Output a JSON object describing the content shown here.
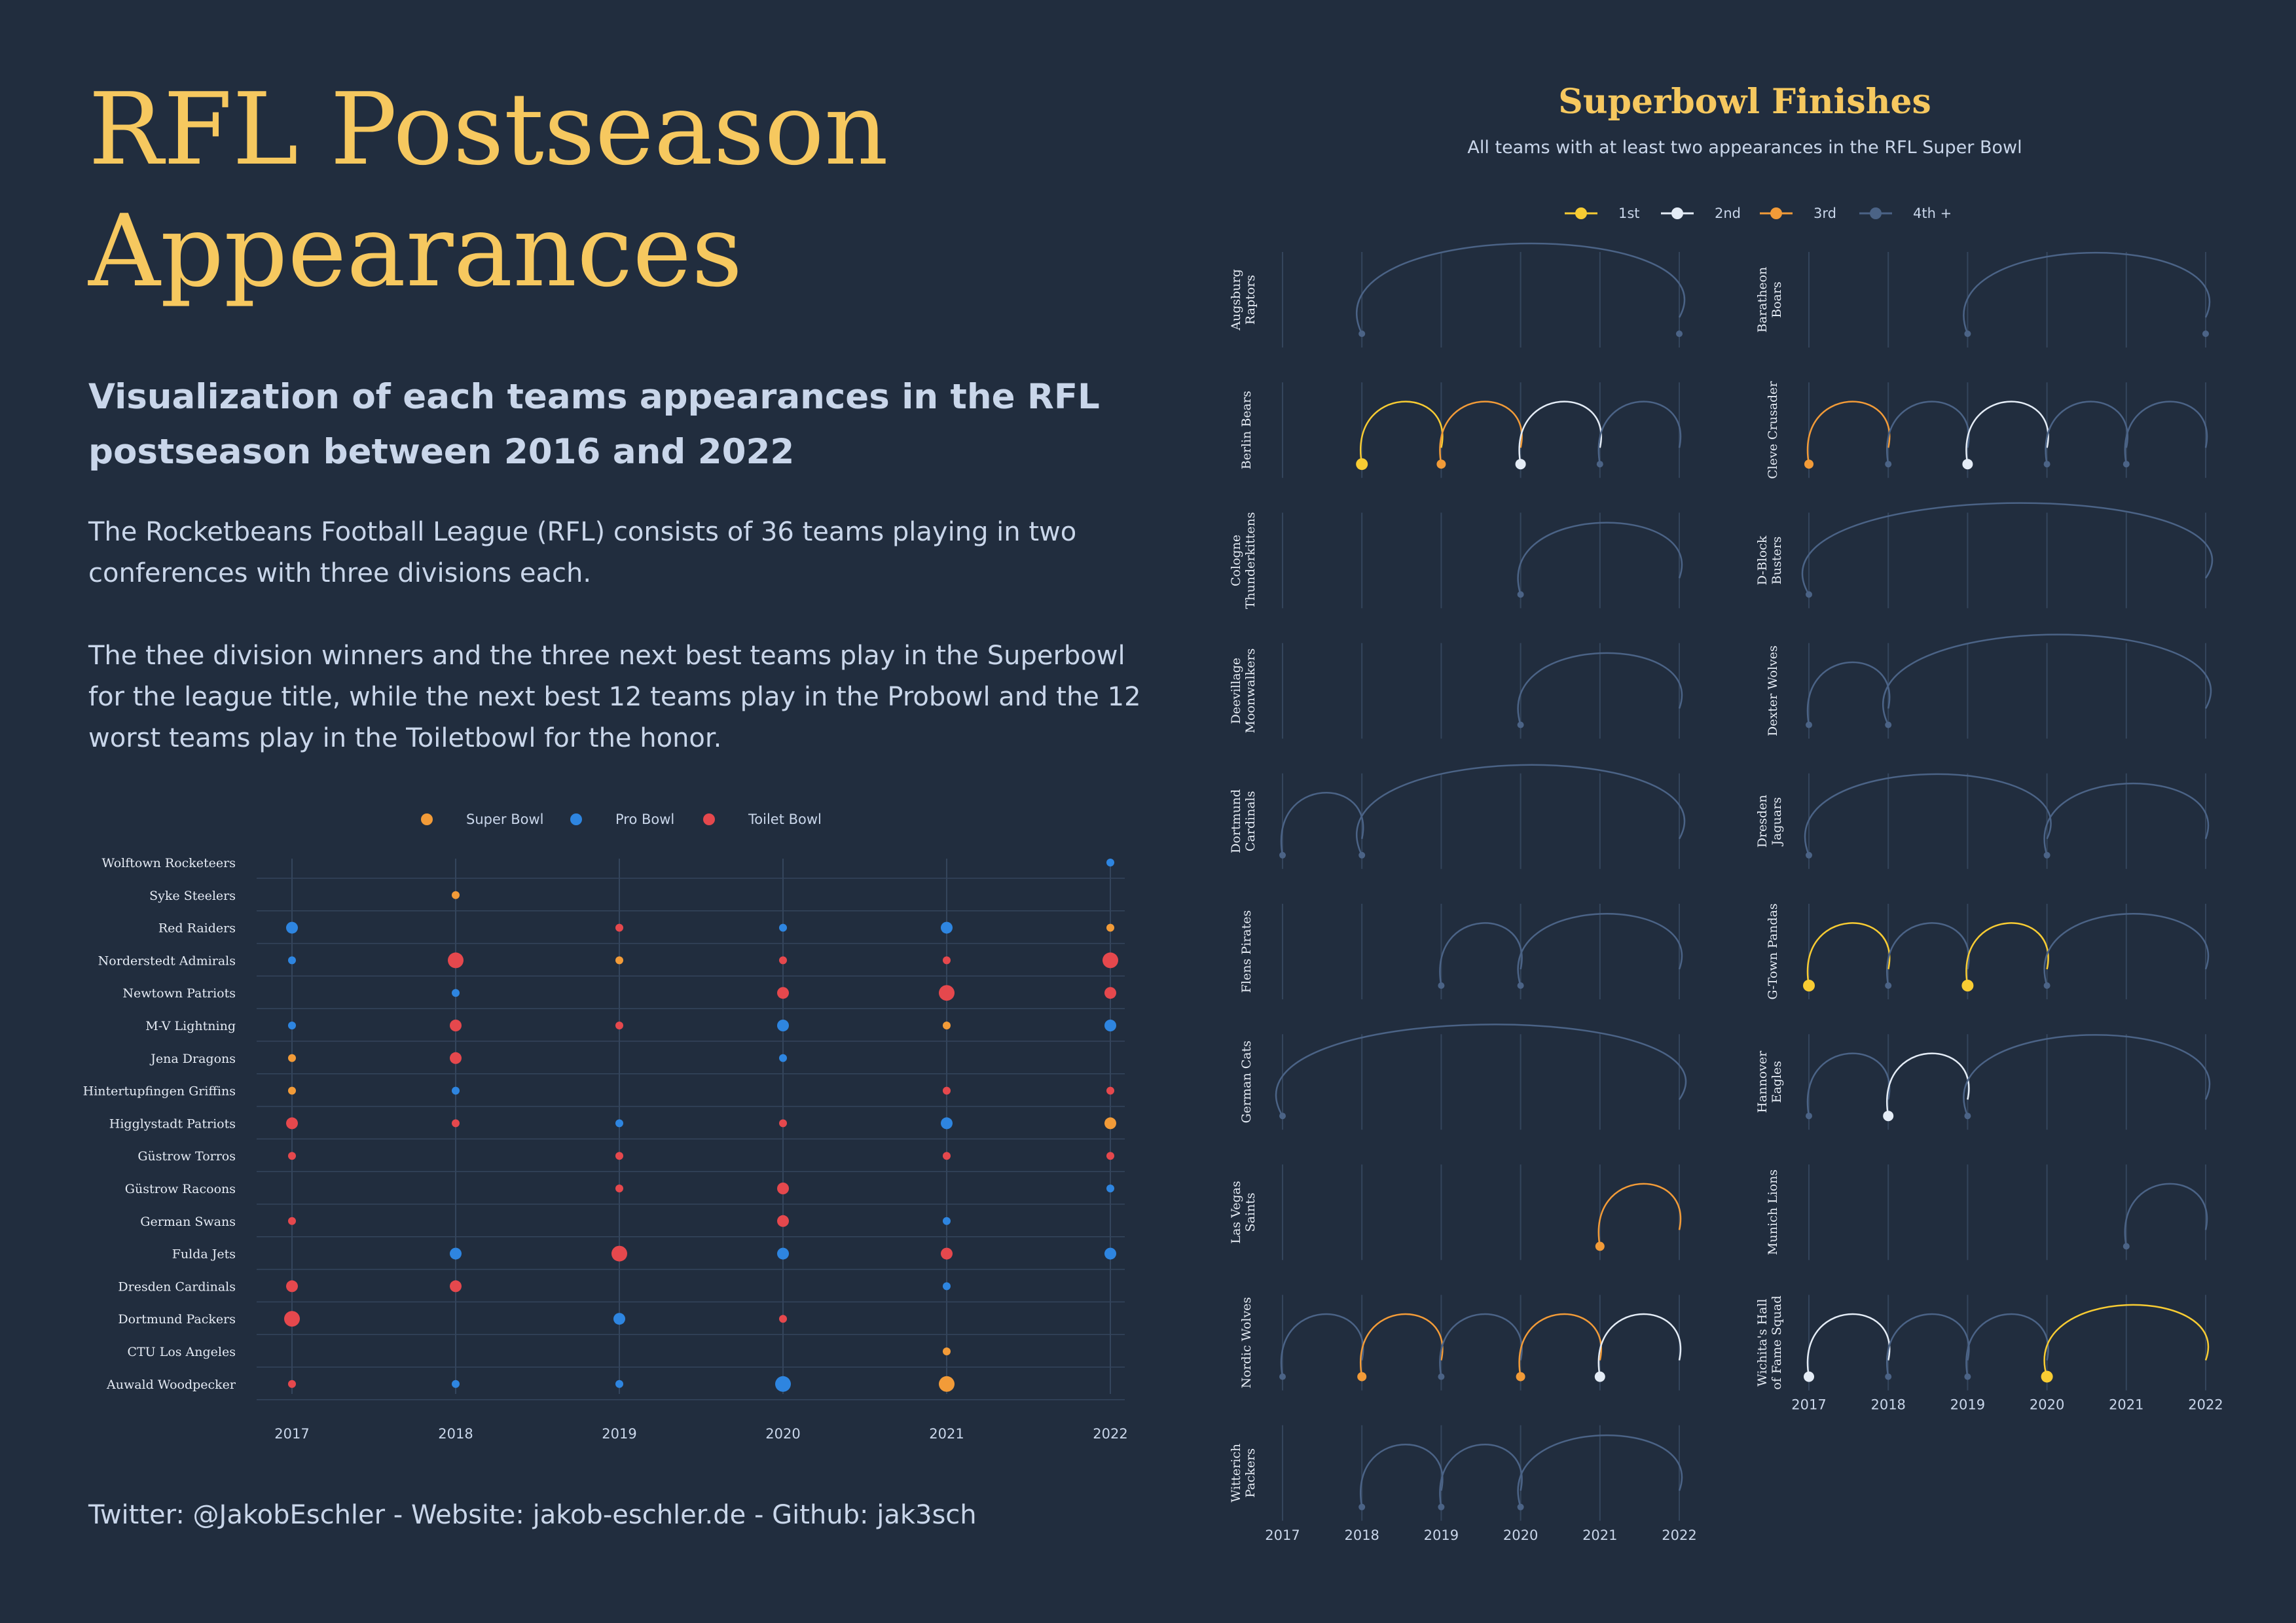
{
  "title": "RFL Postseason Appearances",
  "subtitle": "Visualization of each teams appearances in the RFL postseason between 2016 and 2022",
  "paragraphs": [
    "The Rocketbeans Football League (RFL) consists of 36 teams playing in two conferences with three divisions each.",
    "The thee division winners and the three next best teams play in the Superbowl for the league title, while the next best 12 teams play in the Probowl and the 12 worst teams play in the Toiletbowl for the honor."
  ],
  "footer": "Twitter: @JakobEschler - Website: jakob-eschler.de - Github: jak3sch",
  "colors": {
    "background": "#212d3e",
    "accent": "#f6c85f",
    "text": "#c9d6ea",
    "super_bowl": "#f29b38",
    "pro_bowl": "#2e85e0",
    "toilet_bowl": "#e5484d",
    "first": "#f8cc33",
    "second": "#e4ecf6",
    "third": "#f29b38",
    "fourth_plus": "#4b6386",
    "grid": "#34455c"
  },
  "chart_data": [
    {
      "type": "scatter",
      "years": [
        2017,
        2018,
        2019,
        2020,
        2021,
        2022
      ],
      "legend": [
        {
          "key": "super",
          "label": "Super Bowl"
        },
        {
          "key": "pro",
          "label": "Pro Bowl"
        },
        {
          "key": "toilet",
          "label": "Toilet Bowl"
        }
      ],
      "teams": [
        {
          "name": "Wolftown Rocketeers",
          "points": [
            [
              2022,
              "pro",
              1
            ]
          ]
        },
        {
          "name": "Syke Steelers",
          "points": [
            [
              2018,
              "super",
              1
            ]
          ]
        },
        {
          "name": "Red Raiders",
          "points": [
            [
              2017,
              "pro",
              2
            ],
            [
              2019,
              "toilet",
              1
            ],
            [
              2020,
              "pro",
              1
            ],
            [
              2021,
              "pro",
              2
            ],
            [
              2022,
              "super",
              1
            ]
          ]
        },
        {
          "name": "Norderstedt Admirals",
          "points": [
            [
              2017,
              "pro",
              1
            ],
            [
              2018,
              "toilet",
              3
            ],
            [
              2019,
              "super",
              1
            ],
            [
              2020,
              "toilet",
              1
            ],
            [
              2021,
              "toilet",
              1
            ],
            [
              2022,
              "toilet",
              3
            ]
          ]
        },
        {
          "name": "Newtown Patriots",
          "points": [
            [
              2018,
              "pro",
              1
            ],
            [
              2020,
              "toilet",
              2
            ],
            [
              2021,
              "toilet",
              3
            ],
            [
              2022,
              "toilet",
              2
            ]
          ]
        },
        {
          "name": "M-V Lightning",
          "points": [
            [
              2017,
              "pro",
              1
            ],
            [
              2018,
              "toilet",
              2
            ],
            [
              2019,
              "toilet",
              1
            ],
            [
              2020,
              "pro",
              2
            ],
            [
              2021,
              "super",
              1
            ],
            [
              2022,
              "pro",
              2
            ]
          ]
        },
        {
          "name": "Jena Dragons",
          "points": [
            [
              2017,
              "super",
              1
            ],
            [
              2018,
              "toilet",
              2
            ],
            [
              2020,
              "pro",
              1
            ]
          ]
        },
        {
          "name": "Hintertupfingen Griffins",
          "points": [
            [
              2017,
              "super",
              1
            ],
            [
              2018,
              "pro",
              1
            ],
            [
              2021,
              "toilet",
              1
            ],
            [
              2022,
              "toilet",
              1
            ]
          ]
        },
        {
          "name": "Higglystadt Patriots",
          "points": [
            [
              2017,
              "toilet",
              2
            ],
            [
              2018,
              "toilet",
              1
            ],
            [
              2019,
              "pro",
              1
            ],
            [
              2020,
              "toilet",
              1
            ],
            [
              2021,
              "pro",
              2
            ],
            [
              2022,
              "super",
              2
            ]
          ]
        },
        {
          "name": "Güstrow Torros",
          "points": [
            [
              2017,
              "toilet",
              1
            ],
            [
              2019,
              "toilet",
              1
            ],
            [
              2021,
              "toilet",
              1
            ],
            [
              2022,
              "toilet",
              1
            ]
          ]
        },
        {
          "name": "Güstrow Racoons",
          "points": [
            [
              2019,
              "toilet",
              1
            ],
            [
              2020,
              "toilet",
              2
            ],
            [
              2022,
              "pro",
              1
            ]
          ]
        },
        {
          "name": "German Swans",
          "points": [
            [
              2017,
              "toilet",
              1
            ],
            [
              2020,
              "toilet",
              2
            ],
            [
              2021,
              "pro",
              1
            ]
          ]
        },
        {
          "name": "Fulda Jets",
          "points": [
            [
              2018,
              "pro",
              2
            ],
            [
              2019,
              "toilet",
              3
            ],
            [
              2020,
              "pro",
              2
            ],
            [
              2021,
              "toilet",
              2
            ],
            [
              2022,
              "pro",
              2
            ]
          ]
        },
        {
          "name": "Dresden Cardinals",
          "points": [
            [
              2017,
              "toilet",
              2
            ],
            [
              2018,
              "toilet",
              2
            ],
            [
              2021,
              "pro",
              1
            ]
          ]
        },
        {
          "name": "Dortmund Packers",
          "points": [
            [
              2017,
              "toilet",
              3
            ],
            [
              2019,
              "pro",
              2
            ],
            [
              2020,
              "toilet",
              1
            ]
          ]
        },
        {
          "name": "CTU Los Angeles",
          "points": [
            [
              2021,
              "super",
              1
            ]
          ]
        },
        {
          "name": "Auwald Woodpecker",
          "points": [
            [
              2017,
              "toilet",
              1
            ],
            [
              2018,
              "pro",
              1
            ],
            [
              2019,
              "pro",
              1
            ],
            [
              2020,
              "pro",
              3
            ],
            [
              2021,
              "super",
              3
            ]
          ]
        }
      ]
    },
    {
      "type": "line",
      "title": "Superbowl Finishes",
      "subtitle": "All teams with at least two appearances in the RFL Super Bowl",
      "years": [
        2017,
        2018,
        2019,
        2020,
        2021,
        2022
      ],
      "legend": [
        {
          "key": "1",
          "label": "1st"
        },
        {
          "key": "2",
          "label": "2nd"
        },
        {
          "key": "3",
          "label": "3rd"
        },
        {
          "key": "4",
          "label": "4th +"
        }
      ],
      "left_teams": [
        {
          "name": [
            "Augsburg",
            "Raptors"
          ],
          "finishes": [
            [
              2018,
              4
            ],
            [
              2022,
              4
            ]
          ]
        },
        {
          "name": [
            "Berlin Bears"
          ],
          "finishes": [
            [
              2018,
              1
            ],
            [
              2019,
              3
            ],
            [
              2020,
              2
            ],
            [
              2021,
              4
            ]
          ]
        },
        {
          "name": [
            "Cologne",
            "Thunderkittens"
          ],
          "finishes": [
            [
              2020,
              4
            ]
          ]
        },
        {
          "name": [
            "Deevillage",
            "Moonwalkers"
          ],
          "finishes": [
            [
              2020,
              4
            ]
          ]
        },
        {
          "name": [
            "Dortmund",
            "Cardinals"
          ],
          "finishes": [
            [
              2017,
              4
            ],
            [
              2018,
              4
            ]
          ]
        },
        {
          "name": [
            "Flens Pirates"
          ],
          "finishes": [
            [
              2019,
              4
            ],
            [
              2020,
              4
            ]
          ]
        },
        {
          "name": [
            "German Cats"
          ],
          "finishes": [
            [
              2017,
              4
            ]
          ]
        },
        {
          "name": [
            "Las Vegas",
            "Saints"
          ],
          "finishes": [
            [
              2021,
              3
            ]
          ]
        },
        {
          "name": [
            "Nordic Wolves"
          ],
          "finishes": [
            [
              2017,
              4
            ],
            [
              2018,
              3
            ],
            [
              2019,
              4
            ],
            [
              2020,
              3
            ],
            [
              2021,
              2
            ]
          ]
        },
        {
          "name": [
            "Witterich",
            "Packers"
          ],
          "finishes": [
            [
              2018,
              4
            ],
            [
              2019,
              4
            ],
            [
              2020,
              4
            ]
          ]
        }
      ],
      "right_teams": [
        {
          "name": [
            "Baratheon",
            "Boars"
          ],
          "finishes": [
            [
              2019,
              4
            ],
            [
              2022,
              4
            ]
          ]
        },
        {
          "name": [
            "Cleve Crusader"
          ],
          "finishes": [
            [
              2017,
              3
            ],
            [
              2018,
              4
            ],
            [
              2019,
              2
            ],
            [
              2020,
              4
            ],
            [
              2021,
              4
            ]
          ]
        },
        {
          "name": [
            "D-Block",
            "Busters"
          ],
          "finishes": [
            [
              2017,
              4
            ]
          ]
        },
        {
          "name": [
            "Dexter Wolves"
          ],
          "finishes": [
            [
              2017,
              4
            ],
            [
              2018,
              4
            ]
          ]
        },
        {
          "name": [
            "Dresden",
            "Jaguars"
          ],
          "finishes": [
            [
              2017,
              4
            ],
            [
              2020,
              4
            ]
          ]
        },
        {
          "name": [
            "G-Town Pandas"
          ],
          "finishes": [
            [
              2017,
              1
            ],
            [
              2018,
              4
            ],
            [
              2019,
              1
            ],
            [
              2020,
              4
            ]
          ]
        },
        {
          "name": [
            "Hannover",
            "Eagles"
          ],
          "finishes": [
            [
              2017,
              4
            ],
            [
              2018,
              2
            ],
            [
              2019,
              4
            ]
          ]
        },
        {
          "name": [
            "Munich Lions"
          ],
          "finishes": [
            [
              2021,
              4
            ]
          ]
        },
        {
          "name": [
            "Wichita's Hall",
            "of Fame Squad"
          ],
          "finishes": [
            [
              2017,
              2
            ],
            [
              2018,
              4
            ],
            [
              2019,
              4
            ],
            [
              2020,
              1
            ]
          ]
        }
      ]
    }
  ]
}
